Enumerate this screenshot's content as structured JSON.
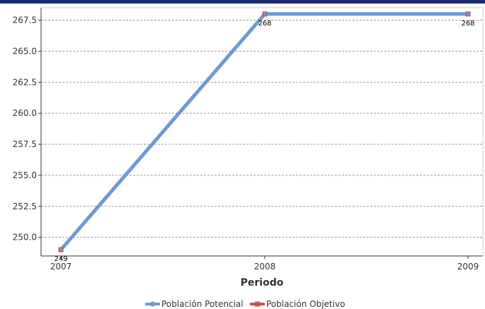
{
  "colors": {
    "top_bar": "#1a2c6b",
    "series_potencial": "#6b9bd1",
    "series_objetivo": "#d0504b",
    "grid": "#999999",
    "axis": "#333333"
  },
  "chart_data": {
    "type": "line",
    "xlabel": "Periodo",
    "ylabel": "",
    "categories": [
      "2007",
      "2008",
      "2009"
    ],
    "ylim": [
      248.5,
      268.5
    ],
    "yticks": [
      250.0,
      252.5,
      255.0,
      257.5,
      260.0,
      262.5,
      265.0,
      267.5
    ],
    "ytick_labels": [
      "250.0",
      "252.5",
      "255.0",
      "257.5",
      "260.0",
      "262.5",
      "265.0",
      "267.5"
    ],
    "grid": true,
    "legend": "bottom-center",
    "series": [
      {
        "name": "Población Potencial",
        "values": [
          249,
          268,
          268
        ]
      },
      {
        "name": "Población Objetivo",
        "values": [
          249,
          268,
          268
        ]
      }
    ],
    "data_labels": [
      "249",
      "268",
      "268"
    ]
  }
}
